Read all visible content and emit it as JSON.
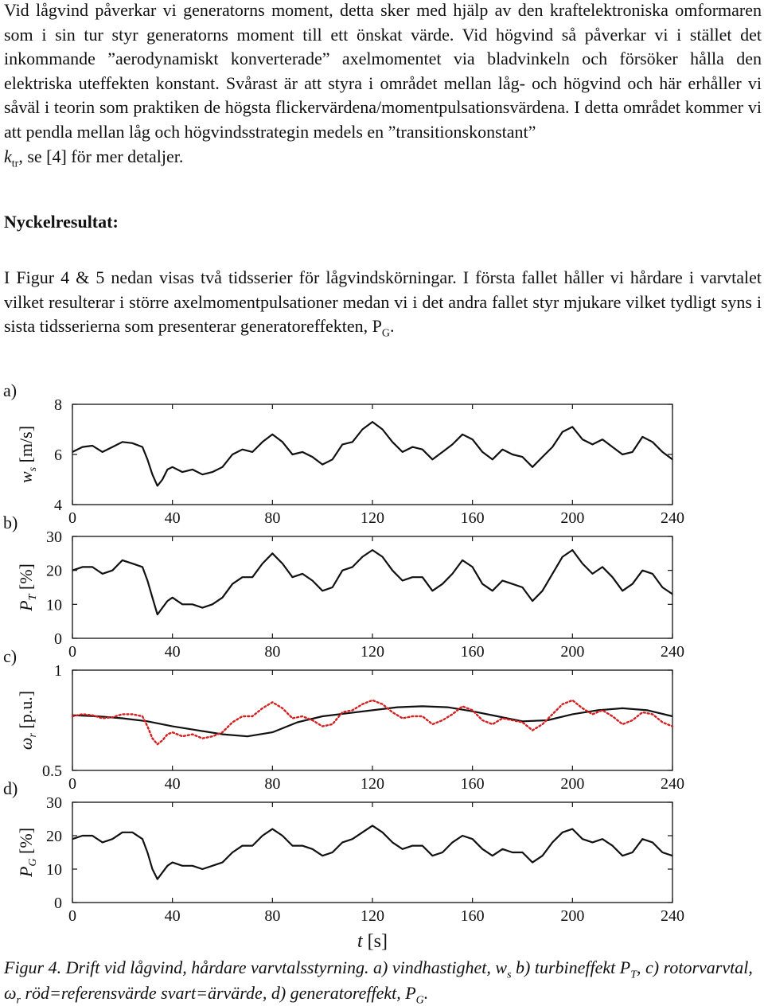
{
  "body": {
    "para1": "Vid lågvind påverkar vi generatorns moment, detta sker med hjälp av den kraftelektroniska omformaren som i sin tur styr generatorns moment till ett önskat värde. Vid högvind så påverkar vi i stället det inkommande ”aerodynamiskt konverterade” axelmomentet via bladvinkeln och försöker hålla den elektriska uteffekten konstant. Svårast är att styra i området mellan låg- och högvind och här erhåller vi såväl i teorin som praktiken de högsta flickervärdena/momentpulsationsvärdena. I detta området kommer vi att pendla mellan låg och högvindsstrategin medels en ”transitionskonstant”",
    "para1_sym": "k",
    "para1_sub": "tr",
    "para1_end": ", se [4] för mer detaljer.",
    "heading": "Nyckelresultat:",
    "para2": "I Figur 4 & 5 nedan visas två tidsserier för lågvindskörningar. I första fallet håller vi hårdare i varvtalet vilket resulterar i större axelmomentpulsationer medan vi i det andra fallet styr mjukare vilket tydligt syns i sista tidsserierna som presenterar generatoreffekten, P",
    "para2_sub": "G",
    "para2_end": "."
  },
  "caption": {
    "t1": "Figur 4. Drift vid lågvind, hårdare varvtalsstyrning. a) vindhastighet, w",
    "s1": "s",
    "t2": " b) turbineffekt P",
    "s2": "T",
    "t3": ", c) rotorvarvtal, ω",
    "s3": "r",
    "t4": " röd=referensvärde svart=ärvärde, d) generatoreffekt, P",
    "s4": "G",
    "t5": "."
  },
  "chart_data": [
    {
      "type": "line",
      "panel": "a)",
      "ylabel": "w",
      "ylabel_sub": "s",
      "ylabel_unit": " [m/s]",
      "xlim": [
        0,
        240
      ],
      "ylim": [
        4,
        8
      ],
      "xticks": [
        "0",
        "40",
        "80",
        "120",
        "160",
        "200",
        "240"
      ],
      "yticks": [
        "4",
        "6",
        "8"
      ],
      "series": [
        {
          "color": "#111111",
          "x": [
            0,
            4,
            8,
            12,
            16,
            20,
            24,
            28,
            30,
            32,
            34,
            36,
            38,
            40,
            44,
            48,
            52,
            56,
            60,
            64,
            68,
            72,
            76,
            80,
            84,
            88,
            92,
            96,
            100,
            104,
            108,
            112,
            116,
            120,
            124,
            128,
            132,
            136,
            140,
            144,
            148,
            152,
            156,
            160,
            164,
            168,
            172,
            176,
            180,
            184,
            188,
            192,
            196,
            200,
            204,
            208,
            212,
            216,
            220,
            224,
            228,
            232,
            236,
            240
          ],
          "y": [
            6.1,
            6.3,
            6.35,
            6.1,
            6.3,
            6.5,
            6.45,
            6.3,
            5.8,
            5.2,
            4.75,
            5.0,
            5.4,
            5.5,
            5.3,
            5.4,
            5.2,
            5.3,
            5.5,
            6.0,
            6.2,
            6.1,
            6.5,
            6.8,
            6.5,
            6.0,
            6.1,
            5.9,
            5.6,
            5.8,
            6.4,
            6.5,
            7.0,
            7.3,
            7.0,
            6.5,
            6.1,
            6.3,
            6.2,
            5.8,
            6.1,
            6.4,
            6.8,
            6.6,
            6.1,
            5.8,
            6.2,
            6.0,
            5.9,
            5.5,
            5.9,
            6.3,
            6.9,
            7.1,
            6.6,
            6.4,
            6.6,
            6.3,
            6.0,
            6.1,
            6.7,
            6.5,
            6.1,
            5.8
          ]
        }
      ]
    },
    {
      "type": "line",
      "panel": "b)",
      "ylabel": "P",
      "ylabel_sub": "T",
      "ylabel_unit": " [%]",
      "xlim": [
        0,
        240
      ],
      "ylim": [
        0,
        30
      ],
      "xticks": [
        "0",
        "40",
        "80",
        "120",
        "160",
        "200",
        "240"
      ],
      "yticks": [
        "0",
        "10",
        "20",
        "30"
      ],
      "series": [
        {
          "color": "#111111",
          "x": [
            0,
            4,
            8,
            12,
            16,
            20,
            24,
            28,
            30,
            32,
            34,
            36,
            38,
            40,
            44,
            48,
            52,
            56,
            60,
            64,
            68,
            72,
            76,
            80,
            84,
            88,
            92,
            96,
            100,
            104,
            108,
            112,
            116,
            120,
            124,
            128,
            132,
            136,
            140,
            144,
            148,
            152,
            156,
            160,
            164,
            168,
            172,
            176,
            180,
            184,
            188,
            192,
            196,
            200,
            204,
            208,
            212,
            216,
            220,
            224,
            228,
            232,
            236,
            240
          ],
          "y": [
            20,
            21,
            21,
            19,
            20,
            23,
            22,
            21,
            17,
            12,
            7,
            9,
            11,
            12,
            10,
            10,
            9,
            10,
            12,
            16,
            18,
            18,
            22,
            25,
            22,
            18,
            19,
            17,
            14,
            15,
            20,
            21,
            24,
            26,
            24,
            20,
            17,
            18,
            18,
            14,
            16,
            19,
            23,
            21,
            16,
            14,
            17,
            16,
            15,
            11,
            14,
            19,
            24,
            26,
            22,
            19,
            21,
            18,
            14,
            16,
            20,
            19,
            15,
            13
          ]
        }
      ]
    },
    {
      "type": "line",
      "panel": "c)",
      "ylabel": "ω",
      "ylabel_sub": "r",
      "ylabel_unit": " [p.u.]",
      "xlim": [
        0,
        240
      ],
      "ylim": [
        0.5,
        1
      ],
      "xticks": [
        "0",
        "40",
        "80",
        "120",
        "160",
        "200",
        "240"
      ],
      "yticks": [
        "0.5",
        "1"
      ],
      "series": [
        {
          "color": "#111111",
          "x": [
            0,
            10,
            20,
            30,
            40,
            50,
            60,
            70,
            80,
            90,
            100,
            110,
            120,
            130,
            140,
            150,
            160,
            170,
            180,
            190,
            200,
            210,
            220,
            230,
            240
          ],
          "y": [
            0.775,
            0.77,
            0.76,
            0.745,
            0.72,
            0.7,
            0.68,
            0.67,
            0.69,
            0.74,
            0.77,
            0.785,
            0.8,
            0.815,
            0.82,
            0.815,
            0.795,
            0.77,
            0.745,
            0.75,
            0.78,
            0.8,
            0.81,
            0.8,
            0.77
          ]
        },
        {
          "color": "#d42020",
          "style": "dotted",
          "x": [
            0,
            4,
            8,
            12,
            16,
            20,
            24,
            28,
            30,
            32,
            34,
            36,
            38,
            40,
            44,
            48,
            52,
            56,
            60,
            64,
            68,
            72,
            76,
            80,
            84,
            88,
            92,
            96,
            100,
            104,
            108,
            112,
            116,
            120,
            124,
            128,
            132,
            136,
            140,
            144,
            148,
            152,
            156,
            160,
            164,
            168,
            172,
            176,
            180,
            184,
            188,
            192,
            196,
            200,
            204,
            208,
            212,
            216,
            220,
            224,
            228,
            232,
            236,
            240
          ],
          "y": [
            0.77,
            0.78,
            0.775,
            0.76,
            0.765,
            0.78,
            0.78,
            0.77,
            0.72,
            0.66,
            0.63,
            0.65,
            0.68,
            0.69,
            0.67,
            0.68,
            0.66,
            0.67,
            0.69,
            0.74,
            0.77,
            0.77,
            0.81,
            0.84,
            0.81,
            0.76,
            0.77,
            0.75,
            0.72,
            0.73,
            0.79,
            0.8,
            0.83,
            0.85,
            0.83,
            0.79,
            0.76,
            0.77,
            0.77,
            0.73,
            0.75,
            0.78,
            0.82,
            0.8,
            0.75,
            0.73,
            0.76,
            0.75,
            0.74,
            0.7,
            0.73,
            0.78,
            0.83,
            0.85,
            0.81,
            0.78,
            0.8,
            0.77,
            0.73,
            0.75,
            0.79,
            0.78,
            0.74,
            0.72
          ]
        }
      ]
    },
    {
      "type": "line",
      "panel": "d)",
      "ylabel": "P",
      "ylabel_sub": "G",
      "ylabel_unit": " [%]",
      "xlim": [
        0,
        240
      ],
      "ylim": [
        0,
        30
      ],
      "xlabel": "t",
      "xlabel_unit": " [s]",
      "xticks": [
        "0",
        "40",
        "80",
        "120",
        "160",
        "200",
        "240"
      ],
      "yticks": [
        "0",
        "10",
        "20",
        "30"
      ],
      "series": [
        {
          "color": "#111111",
          "x": [
            0,
            4,
            8,
            12,
            16,
            20,
            24,
            28,
            30,
            32,
            34,
            36,
            38,
            40,
            44,
            48,
            52,
            56,
            60,
            64,
            68,
            72,
            76,
            80,
            84,
            88,
            92,
            96,
            100,
            104,
            108,
            112,
            116,
            120,
            124,
            128,
            132,
            136,
            140,
            144,
            148,
            152,
            156,
            160,
            164,
            168,
            172,
            176,
            180,
            184,
            188,
            192,
            196,
            200,
            204,
            208,
            212,
            216,
            220,
            224,
            228,
            232,
            236,
            240
          ],
          "y": [
            19,
            20,
            20,
            18,
            19,
            21,
            21,
            19,
            15,
            10,
            7,
            9,
            11,
            12,
            11,
            11,
            10,
            11,
            12,
            15,
            17,
            17,
            20,
            22,
            20,
            17,
            17,
            16,
            14,
            15,
            18,
            19,
            21,
            23,
            21,
            18,
            16,
            17,
            17,
            14,
            15,
            18,
            20,
            19,
            16,
            14,
            16,
            15,
            15,
            12,
            14,
            18,
            21,
            22,
            19,
            18,
            19,
            17,
            14,
            15,
            19,
            18,
            15,
            14
          ]
        }
      ]
    }
  ]
}
